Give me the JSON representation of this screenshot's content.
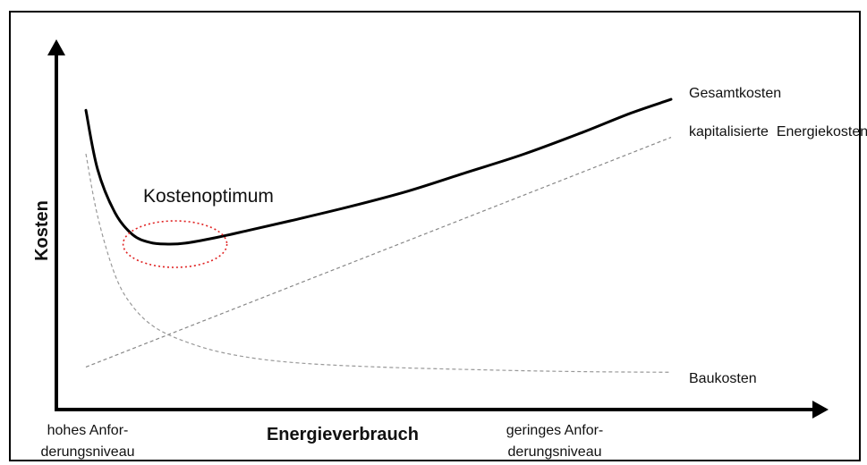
{
  "chart_data": {
    "type": "line",
    "xlabel": "Energieverbrauch",
    "ylabel": "Kosten",
    "x_tick_labels": {
      "left": [
        "hohes Anfor-",
        "derungsniveau"
      ],
      "right": [
        "geringes Anfor-",
        "derungsniveau"
      ]
    },
    "xlim": [
      0,
      1
    ],
    "ylim": [
      0,
      1
    ],
    "series": [
      {
        "name": "Gesamtkosten",
        "style": "solid-thick",
        "color": "#000000",
        "x": [
          0.0,
          0.02,
          0.05,
          0.08,
          0.11,
          0.14,
          0.17,
          0.22,
          0.28,
          0.35,
          0.45,
          0.55,
          0.65,
          0.75,
          0.85,
          0.93,
          1.0
        ],
        "y": [
          0.91,
          0.72,
          0.58,
          0.51,
          0.485,
          0.48,
          0.483,
          0.5,
          0.525,
          0.555,
          0.6,
          0.65,
          0.71,
          0.77,
          0.84,
          0.9,
          0.945
        ]
      },
      {
        "name": "kapitalisierte  Energiekosten",
        "style": "dashed",
        "color": "#888888",
        "x": [
          0.0,
          1.0
        ],
        "y": [
          0.085,
          0.823
        ]
      },
      {
        "name": "Baukosten",
        "style": "dashed",
        "color": "#999999",
        "x": [
          0.0,
          0.02,
          0.05,
          0.08,
          0.12,
          0.18,
          0.25,
          0.35,
          0.5,
          0.7,
          0.85,
          1.0
        ],
        "y": [
          0.77,
          0.57,
          0.38,
          0.28,
          0.21,
          0.16,
          0.125,
          0.1,
          0.085,
          0.075,
          0.07,
          0.068
        ]
      }
    ],
    "annotations": [
      {
        "text": "Kostenoptimum",
        "marker": "dotted-ellipse",
        "color": "#e02020",
        "target_x": 0.14,
        "target_y": 0.48
      }
    ]
  }
}
